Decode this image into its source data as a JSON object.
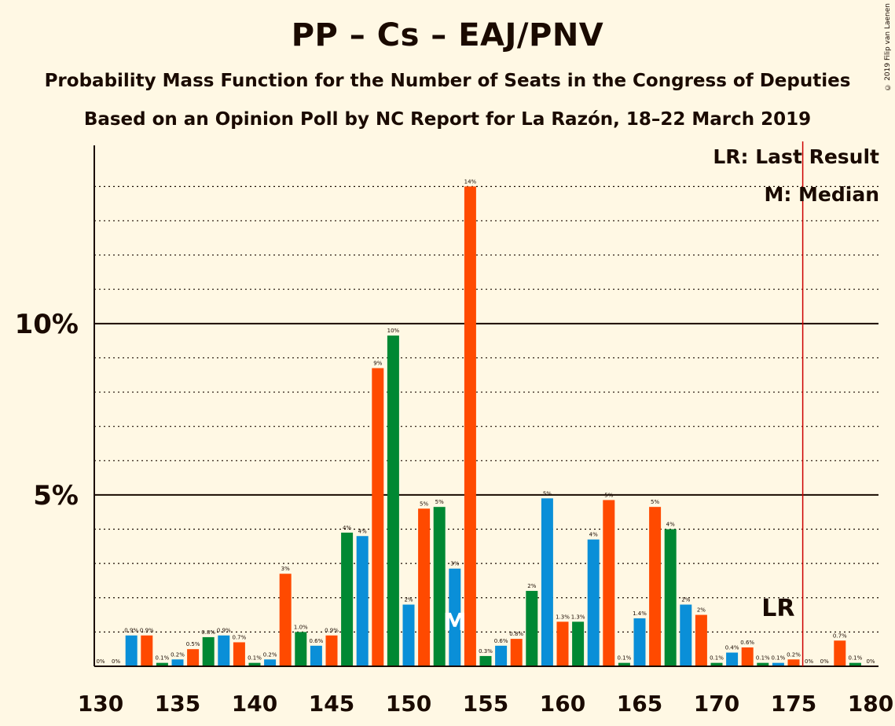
{
  "title": "PP – Cs – EAJ/PNV",
  "subtitle": "Probability Mass Function for the Number of Seats in the Congress of Deputies",
  "subtitle2": "Based on an Opinion Poll by NC Report for La Razón, 18–22 March 2019",
  "copyright": "© 2019 Filip van Laenen",
  "legend": {
    "last_result": "LR: Last Result",
    "median": "M: Median"
  },
  "colors": {
    "pp": "#0A8FD8",
    "cs": "#FF4A00",
    "pnv": "#008833",
    "lr_line": "#CC0000",
    "background": "#FFF8E4"
  },
  "chart_data": {
    "type": "bar",
    "xlabel": "",
    "ylabel": "",
    "x_ticks": [
      130,
      135,
      140,
      145,
      150,
      155,
      160,
      165,
      170,
      175,
      180
    ],
    "y_ticks": [
      {
        "value": 5,
        "label": "5%"
      },
      {
        "value": 10,
        "label": "10%"
      }
    ],
    "ylim": [
      0,
      15.2
    ],
    "xlim": [
      130,
      180
    ],
    "grid": "dotted every 1%, solid at 5% and 10%",
    "last_result": 176,
    "last_result_label": "LR",
    "median": 153,
    "median_label": "M",
    "bars": [
      {
        "x": 130,
        "value": 0,
        "label": "0%",
        "color": "pnv"
      },
      {
        "x": 131,
        "value": 0,
        "label": "0%",
        "color": "pp"
      },
      {
        "x": 132,
        "value": 0.9,
        "label": "0.9%",
        "color": "pp"
      },
      {
        "x": 133,
        "value": 0.9,
        "label": "0.9%",
        "color": "cs"
      },
      {
        "x": 134,
        "value": 0.1,
        "label": "0.1%",
        "color": "pnv"
      },
      {
        "x": 135,
        "value": 0.2,
        "label": "0.2%",
        "color": "pp"
      },
      {
        "x": 136,
        "value": 0.5,
        "label": "0.5%",
        "color": "cs"
      },
      {
        "x": 137,
        "value": 0.85,
        "label": "0.8%",
        "color": "pnv"
      },
      {
        "x": 138,
        "value": 0.9,
        "label": "0.9%",
        "color": "pp"
      },
      {
        "x": 139,
        "value": 0.7,
        "label": "0.7%",
        "color": "cs"
      },
      {
        "x": 140,
        "value": 0.1,
        "label": "0.1%",
        "color": "pnv"
      },
      {
        "x": 141,
        "value": 0.2,
        "label": "0.2%",
        "color": "pp"
      },
      {
        "x": 142,
        "value": 2.7,
        "label": "3%",
        "color": "cs"
      },
      {
        "x": 143,
        "value": 1.0,
        "label": "1.0%",
        "color": "pnv"
      },
      {
        "x": 144,
        "value": 0.6,
        "label": "0.6%",
        "color": "pp"
      },
      {
        "x": 145,
        "value": 0.9,
        "label": "0.9%",
        "color": "cs"
      },
      {
        "x": 146,
        "value": 3.9,
        "label": "4%",
        "color": "pnv"
      },
      {
        "x": 147,
        "value": 3.8,
        "label": "4%",
        "color": "pp"
      },
      {
        "x": 148,
        "value": 8.7,
        "label": "9%",
        "color": "cs"
      },
      {
        "x": 149,
        "value": 9.65,
        "label": "10%",
        "color": "pnv"
      },
      {
        "x": 150,
        "value": 1.8,
        "label": "2%",
        "color": "pp"
      },
      {
        "x": 151,
        "value": 4.6,
        "label": "5%",
        "color": "cs"
      },
      {
        "x": 152,
        "value": 4.65,
        "label": "5%",
        "color": "pnv"
      },
      {
        "x": 153,
        "value": 2.85,
        "label": "3%",
        "color": "pp"
      },
      {
        "x": 154,
        "value": 14.0,
        "label": "14%",
        "color": "cs"
      },
      {
        "x": 155,
        "value": 0.3,
        "label": "0.3%",
        "color": "pnv"
      },
      {
        "x": 156,
        "value": 0.6,
        "label": "0.6%",
        "color": "pp"
      },
      {
        "x": 157,
        "value": 0.8,
        "label": "0.8%",
        "color": "cs"
      },
      {
        "x": 158,
        "value": 2.2,
        "label": "2%",
        "color": "pnv"
      },
      {
        "x": 159,
        "value": 4.9,
        "label": "5%",
        "color": "pp"
      },
      {
        "x": 160,
        "value": 1.3,
        "label": "1.3%",
        "color": "cs"
      },
      {
        "x": 161,
        "value": 1.3,
        "label": "1.3%",
        "color": "pnv"
      },
      {
        "x": 162,
        "value": 3.7,
        "label": "4%",
        "color": "pp"
      },
      {
        "x": 163,
        "value": 4.85,
        "label": "5%",
        "color": "cs"
      },
      {
        "x": 164,
        "value": 0.1,
        "label": "0.1%",
        "color": "pnv"
      },
      {
        "x": 165,
        "value": 1.4,
        "label": "1.4%",
        "color": "pp"
      },
      {
        "x": 166,
        "value": 4.65,
        "label": "5%",
        "color": "cs"
      },
      {
        "x": 167,
        "value": 4.0,
        "label": "4%",
        "color": "pnv"
      },
      {
        "x": 168,
        "value": 1.8,
        "label": "2%",
        "color": "pp"
      },
      {
        "x": 169,
        "value": 1.5,
        "label": "2%",
        "color": "cs"
      },
      {
        "x": 170,
        "value": 0.1,
        "label": "0.1%",
        "color": "pnv"
      },
      {
        "x": 171,
        "value": 0.4,
        "label": "0.4%",
        "color": "pp"
      },
      {
        "x": 172,
        "value": 0.55,
        "label": "0.6%",
        "color": "cs"
      },
      {
        "x": 173,
        "value": 0.1,
        "label": "0.1%",
        "color": "pnv"
      },
      {
        "x": 174,
        "value": 0.1,
        "label": "0.1%",
        "color": "pp"
      },
      {
        "x": 175,
        "value": 0.2,
        "label": "0.2%",
        "color": "cs"
      },
      {
        "x": 176,
        "value": 0,
        "label": "0%",
        "color": "pnv"
      },
      {
        "x": 177,
        "value": 0,
        "label": "0%",
        "color": "pp"
      },
      {
        "x": 178,
        "value": 0.75,
        "label": "0.7%",
        "color": "cs"
      },
      {
        "x": 179,
        "value": 0.1,
        "label": "0.1%",
        "color": "pnv"
      },
      {
        "x": 180,
        "value": 0,
        "label": "0%",
        "color": "pp"
      }
    ]
  }
}
